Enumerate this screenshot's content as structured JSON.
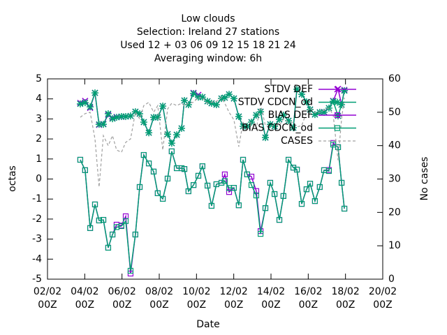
{
  "chart_data": {
    "type": "line",
    "title": [
      "Low clouds",
      "Selection: Ireland      27 stations",
      "Used  12 + 03 06 09 12 15 18 21 24",
      "Averaging window:  6h"
    ],
    "x_label": "Date",
    "y_label": "octas",
    "y2_label": "No cases",
    "xlim": [
      2,
      20
    ],
    "xticks": [
      {
        "value": 2,
        "label": "02/02 00Z"
      },
      {
        "value": 4,
        "label": "04/02 00Z"
      },
      {
        "value": 6,
        "label": "06/02 00Z"
      },
      {
        "value": 8,
        "label": "08/02 00Z"
      },
      {
        "value": 10,
        "label": "10/02 00Z"
      },
      {
        "value": 12,
        "label": "12/02 00Z"
      },
      {
        "value": 14,
        "label": "14/02 00Z"
      },
      {
        "value": 16,
        "label": "16/02 00Z"
      },
      {
        "value": 18,
        "label": "18/02 00Z"
      },
      {
        "value": 20,
        "label": "20/02 00Z"
      }
    ],
    "ylim": [
      -5,
      5
    ],
    "yticks": [
      -5,
      -4,
      -3,
      -2,
      -1,
      0,
      1,
      2,
      3,
      4,
      5
    ],
    "y2lim": [
      0,
      60
    ],
    "y2ticks": [
      0,
      10,
      20,
      30,
      40,
      50,
      60
    ],
    "legend": "top-right",
    "x": [
      3.76,
      4.02,
      4.29,
      4.55,
      4.77,
      5.0,
      5.26,
      5.49,
      5.71,
      5.97,
      6.2,
      6.46,
      6.72,
      6.95,
      7.17,
      7.44,
      7.7,
      7.92,
      8.19,
      8.45,
      8.67,
      8.94,
      9.2,
      9.35,
      9.57,
      9.84,
      10.1,
      10.32,
      10.59,
      10.81,
      11.07,
      11.34,
      11.52,
      11.75,
      12.01,
      12.27,
      12.5,
      12.72,
      12.95,
      13.21,
      13.44,
      13.7,
      13.96,
      14.19,
      14.45,
      14.67,
      14.94,
      15.2,
      15.39,
      15.65,
      15.91,
      16.1,
      16.36,
      16.62,
      16.85,
      17.11,
      17.34,
      17.6,
      17.79,
      17.94
    ],
    "series": [
      {
        "name": "STDV DEF",
        "color": "#9400d3",
        "marker": "asterisk",
        "values": [
          3.8,
          3.9,
          3.55,
          4.3,
          2.7,
          2.75,
          3.2,
          3.05,
          3.1,
          3.1,
          3.12,
          3.15,
          3.36,
          3.26,
          2.84,
          2.31,
          3.08,
          3.08,
          3.64,
          2.24,
          1.79,
          2.21,
          2.53,
          3.92,
          3.71,
          4.3,
          4.2,
          4.09,
          3.88,
          3.78,
          3.71,
          4.02,
          4.06,
          4.23,
          4.02,
          3.12,
          2.63,
          2.63,
          2.84,
          3.19,
          3.36,
          2.07,
          2.73,
          2.63,
          2.98,
          3.19,
          2.91,
          2.56,
          4.48,
          4.23,
          3.85,
          3.47,
          3.22,
          3.33,
          3.35,
          3.54,
          3.9,
          4.5,
          3.71,
          4.45
        ]
      },
      {
        "name": "STDV CDCN_od",
        "color": "#009e73",
        "marker": "star",
        "values": [
          3.75,
          3.81,
          3.6,
          4.3,
          2.73,
          2.73,
          3.26,
          3.01,
          3.08,
          3.12,
          3.12,
          3.15,
          3.36,
          3.26,
          2.84,
          2.31,
          3.08,
          3.08,
          3.64,
          2.24,
          1.79,
          2.21,
          2.53,
          3.92,
          3.71,
          4.27,
          4.09,
          4.09,
          3.88,
          3.78,
          3.71,
          4.02,
          4.06,
          4.23,
          4.02,
          3.12,
          2.63,
          2.63,
          2.84,
          3.19,
          3.36,
          2.07,
          2.73,
          2.63,
          2.98,
          3.19,
          2.91,
          2.56,
          4.48,
          4.23,
          3.85,
          3.47,
          3.22,
          3.33,
          3.33,
          3.54,
          3.88,
          3.15,
          3.71,
          4.41
        ]
      },
      {
        "name": "BIAS DEF",
        "color": "#9400d3",
        "marker": "square",
        "values": [
          0.96,
          0.44,
          -2.45,
          -1.27,
          -2.07,
          -2.04,
          -3.43,
          -2.77,
          -2.28,
          -2.32,
          -1.86,
          -4.72,
          -2.77,
          -0.4,
          1.2,
          0.78,
          0.37,
          -0.71,
          -0.99,
          0.02,
          1.38,
          0.54,
          0.54,
          0.5,
          -0.61,
          -0.3,
          0.16,
          0.64,
          -0.33,
          -1.34,
          -0.26,
          -0.19,
          0.23,
          -0.65,
          -0.44,
          -1.31,
          0.96,
          0.23,
          0.12,
          -0.6,
          -2.6,
          -1.45,
          -0.19,
          -0.75,
          -2.04,
          -0.85,
          0.96,
          0.57,
          0.47,
          -1.24,
          -0.51,
          -0.23,
          -1.1,
          -0.4,
          0.44,
          0.45,
          1.8,
          1.59,
          -0.19,
          -1.48
        ]
      },
      {
        "name": "BIAS CDCN_od",
        "color": "#009e73",
        "marker": "square",
        "values": [
          0.96,
          0.44,
          -2.45,
          -1.27,
          -2.07,
          -2.04,
          -3.43,
          -2.77,
          -2.4,
          -2.35,
          -2.1,
          -4.58,
          -2.77,
          -0.4,
          1.2,
          0.78,
          0.37,
          -0.71,
          -0.99,
          0.02,
          1.38,
          0.54,
          0.54,
          0.5,
          -0.61,
          -0.3,
          0.16,
          0.64,
          -0.33,
          -1.34,
          -0.26,
          -0.19,
          -0.1,
          -0.45,
          -0.44,
          -1.31,
          0.96,
          0.23,
          -0.3,
          -0.82,
          -2.74,
          -1.45,
          -0.19,
          -0.75,
          -2.04,
          -0.85,
          0.96,
          0.57,
          0.47,
          -1.24,
          -0.51,
          -0.23,
          -1.1,
          -0.4,
          0.44,
          0.4,
          1.72,
          1.59,
          -0.19,
          -1.48
        ]
      },
      {
        "name": "CASES",
        "color": "#a0a0a0",
        "axis": "y2",
        "dash": true,
        "values": [
          48.5,
          49.6,
          50,
          42,
          27.6,
          43,
          40,
          43,
          38.7,
          38,
          41,
          42,
          50,
          48,
          52,
          53,
          50,
          52,
          38.7,
          51,
          52.7,
          52,
          52.7,
          52,
          52.7,
          53,
          54.4,
          54.4,
          52.7,
          53,
          53.3,
          54.4,
          52.7,
          50,
          47.7,
          39.7,
          47,
          46,
          47,
          45,
          52.3,
          46,
          45.6,
          46.4,
          46,
          48,
          47,
          47,
          45.6,
          46,
          50,
          51.3,
          49.8,
          50,
          50.6,
          51.3,
          49.2,
          35.6,
          48,
          54.4
        ]
      }
    ]
  }
}
